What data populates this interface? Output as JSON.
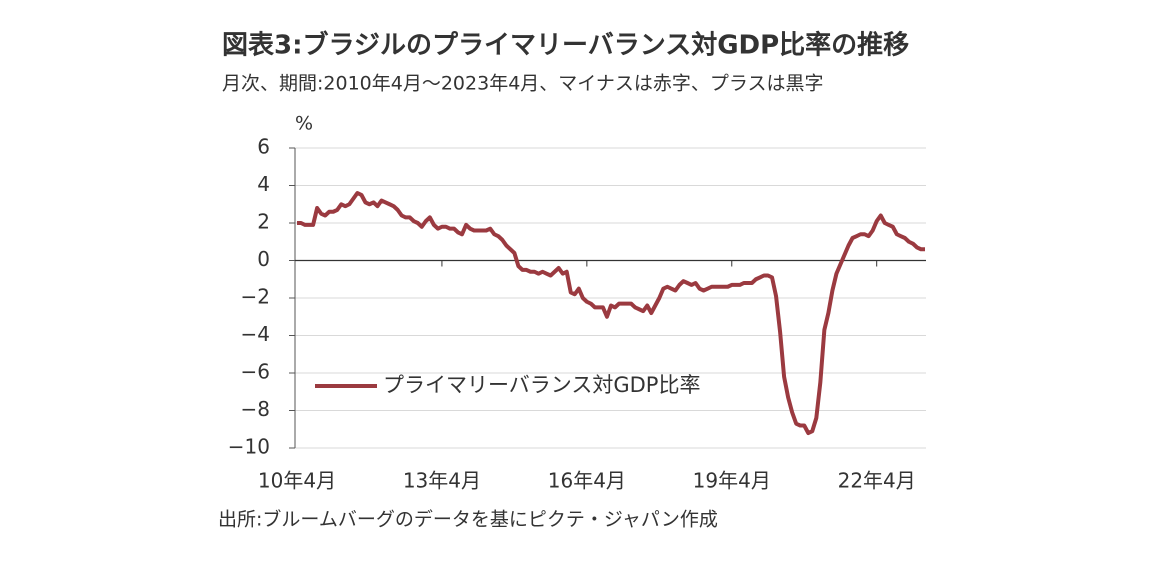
{
  "chart_data": {
    "type": "line",
    "title": "図表3:ブラジルのプライマリーバランス対GDP比率の推移",
    "subtitle": "月次、期間:2010年4月～2023年4月、マイナスは赤字、プラスは黒字",
    "y_unit": "%",
    "source": "出所:ブルームバーグのデータを基にピクテ・ジャパン作成",
    "categories": [
      "10年4月",
      null,
      null,
      null,
      null,
      null,
      null,
      null,
      null,
      null,
      null,
      null,
      null,
      null,
      null,
      null,
      null,
      null,
      null,
      null,
      null,
      null,
      null,
      null,
      null,
      null,
      null,
      null,
      null,
      null,
      null,
      null,
      null,
      null,
      null,
      null,
      "13年4月",
      null,
      null,
      null,
      null,
      null,
      null,
      null,
      null,
      null,
      null,
      null,
      null,
      null,
      null,
      null,
      null,
      null,
      null,
      null,
      null,
      null,
      null,
      null,
      null,
      null,
      null,
      null,
      null,
      null,
      null,
      null,
      null,
      null,
      null,
      null,
      "16年4月",
      null,
      null,
      null,
      null,
      null,
      null,
      null,
      null,
      null,
      null,
      null,
      null,
      null,
      null,
      null,
      null,
      null,
      null,
      null,
      null,
      null,
      null,
      null,
      null,
      null,
      null,
      null,
      null,
      null,
      null,
      null,
      null,
      null,
      null,
      null,
      "19年4月",
      null,
      null,
      null,
      null,
      null,
      null,
      null,
      null,
      null,
      null,
      null,
      null,
      null,
      null,
      null,
      null,
      null,
      null,
      null,
      null,
      null,
      null,
      null,
      null,
      null,
      null,
      null,
      null,
      null,
      null,
      null,
      null,
      null,
      null,
      null,
      "22年4月",
      null,
      null,
      null,
      null,
      null,
      null,
      null,
      null,
      null,
      null,
      null,
      null
    ],
    "series": [
      {
        "name": "プライマリーバランス対GDP比率",
        "color": "#9b3a40",
        "values": [
          2.0,
          2.0,
          1.9,
          1.9,
          1.9,
          2.8,
          2.5,
          2.4,
          2.6,
          2.6,
          2.7,
          3.0,
          2.9,
          3.0,
          3.3,
          3.6,
          3.5,
          3.1,
          3.0,
          3.1,
          2.9,
          3.2,
          3.1,
          3.0,
          2.9,
          2.7,
          2.4,
          2.3,
          2.3,
          2.1,
          2.0,
          1.8,
          2.1,
          2.3,
          1.9,
          1.7,
          1.8,
          1.8,
          1.7,
          1.7,
          1.5,
          1.4,
          1.9,
          1.7,
          1.6,
          1.6,
          1.6,
          1.6,
          1.7,
          1.4,
          1.3,
          1.1,
          0.8,
          0.6,
          0.4,
          -0.3,
          -0.5,
          -0.5,
          -0.6,
          -0.6,
          -0.7,
          -0.6,
          -0.7,
          -0.8,
          -0.6,
          -0.4,
          -0.7,
          -0.6,
          -1.7,
          -1.8,
          -1.5,
          -2.0,
          -2.2,
          -2.3,
          -2.5,
          -2.5,
          -2.5,
          -3.0,
          -2.4,
          -2.5,
          -2.3,
          -2.3,
          -2.3,
          -2.3,
          -2.5,
          -2.6,
          -2.7,
          -2.4,
          -2.8,
          -2.4,
          -2.0,
          -1.5,
          -1.4,
          -1.5,
          -1.6,
          -1.3,
          -1.1,
          -1.2,
          -1.3,
          -1.2,
          -1.5,
          -1.6,
          -1.5,
          -1.4,
          -1.4,
          -1.4,
          -1.4,
          -1.4,
          -1.3,
          -1.3,
          -1.3,
          -1.2,
          -1.2,
          -1.2,
          -1.0,
          -0.9,
          -0.8,
          -0.8,
          -0.9,
          -1.9,
          -3.8,
          -6.2,
          -7.3,
          -8.1,
          -8.7,
          -8.8,
          -8.8,
          -9.2,
          -9.1,
          -8.4,
          -6.5,
          -3.7,
          -2.8,
          -1.6,
          -0.7,
          -0.2,
          0.3,
          0.8,
          1.2,
          1.3,
          1.4,
          1.4,
          1.3,
          1.6,
          2.1,
          2.4,
          2.0,
          1.9,
          1.8,
          1.4,
          1.3,
          1.2,
          1.0,
          0.9,
          0.7,
          0.6,
          0.6
        ]
      }
    ],
    "ylim": [
      -10,
      6
    ],
    "yticks": [
      6,
      4,
      2,
      0,
      {
        "value": -2,
        "label": "−2"
      },
      {
        "value": -4,
        "label": "−4"
      },
      {
        "value": -6,
        "label": "−6"
      },
      {
        "value": -8,
        "label": "−8"
      },
      {
        "value": -10,
        "label": "−10"
      }
    ],
    "grid": true,
    "legend": "lower left"
  }
}
